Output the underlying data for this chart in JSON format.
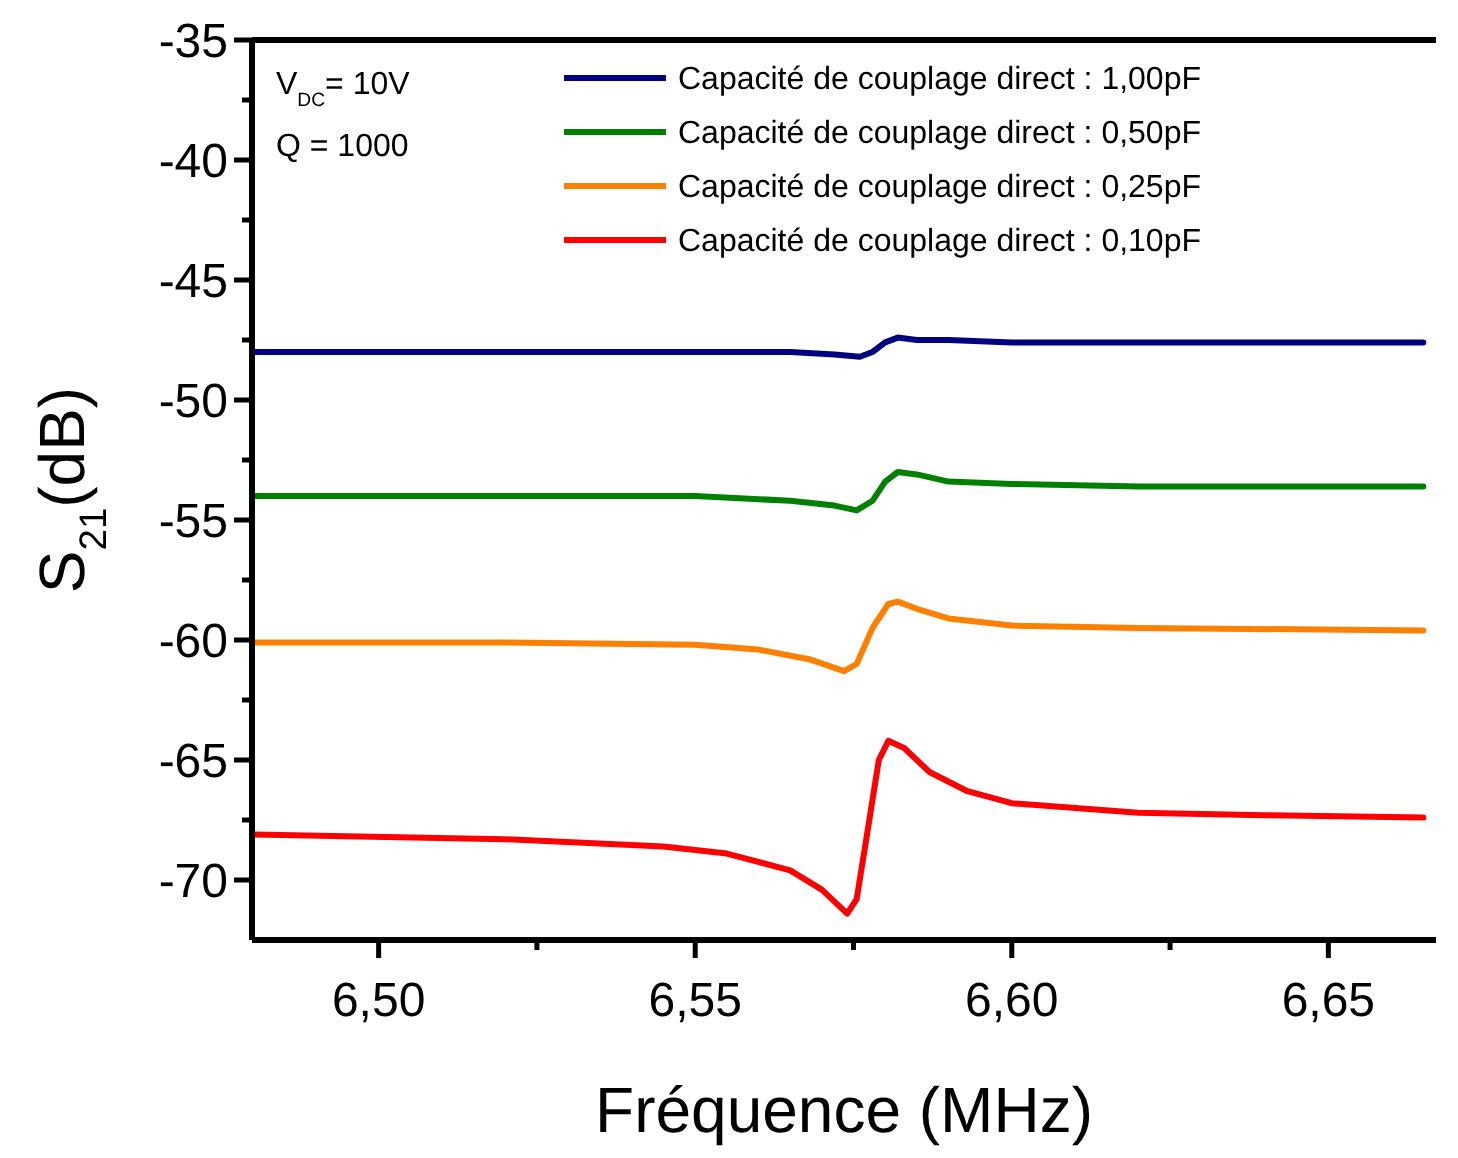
{
  "chart_data": {
    "type": "line",
    "xlabel": "Fréquence (MHz)",
    "ylabel": "S$_{21}$(dB)",
    "annotations": [
      "V$_{DC}$= 10V",
      "Q = 1000"
    ],
    "xlim": [
      6.48,
      6.667
    ],
    "ylim": [
      -72.5,
      -35
    ],
    "xticks": [
      {
        "value": 6.5,
        "label": "6,50"
      },
      {
        "value": 6.525,
        "label": null
      },
      {
        "value": 6.55,
        "label": "6,55"
      },
      {
        "value": 6.575,
        "label": null
      },
      {
        "value": 6.6,
        "label": "6,60"
      },
      {
        "value": 6.625,
        "label": null
      },
      {
        "value": 6.65,
        "label": "6,65"
      }
    ],
    "yticks": [
      -35,
      {
        "value": -37.5,
        "label": null
      },
      -40,
      {
        "value": -42.5,
        "label": null
      },
      -45,
      {
        "value": -47.5,
        "label": null
      },
      -50,
      {
        "value": -52.5,
        "label": null
      },
      -55,
      {
        "value": -57.5,
        "label": null
      },
      -60,
      {
        "value": -62.5,
        "label": null
      },
      -65,
      {
        "value": -67.5,
        "label": null
      },
      -70
    ],
    "grid": false,
    "legend": "top right",
    "line_style": "solid",
    "marker": "none",
    "series": [
      {
        "name": "Capacité de couplage direct : 1,00pF",
        "color": "#000080",
        "x": [
          6.48,
          6.52,
          6.55,
          6.565,
          6.572,
          6.576,
          6.578,
          6.58,
          6.582,
          6.585,
          6.59,
          6.6,
          6.63,
          6.665
        ],
        "values": [
          -48.0,
          -48.0,
          -48.0,
          -48.0,
          -48.1,
          -48.2,
          -48.0,
          -47.6,
          -47.4,
          -47.5,
          -47.5,
          -47.6,
          -47.6,
          -47.6
        ]
      },
      {
        "name": "Capacité de couplage direct : 0,50pF",
        "color": "#008000",
        "x": [
          6.48,
          6.52,
          6.55,
          6.565,
          6.572,
          6.5755,
          6.578,
          6.58,
          6.582,
          6.585,
          6.59,
          6.6,
          6.62,
          6.665
        ],
        "values": [
          -54.0,
          -54.0,
          -54.0,
          -54.2,
          -54.4,
          -54.6,
          -54.2,
          -53.4,
          -53.0,
          -53.1,
          -53.4,
          -53.5,
          -53.6,
          -53.6
        ]
      },
      {
        "name": "Capacité de couplage direct : 0,25pF",
        "color": "#ff8000",
        "x": [
          6.48,
          6.52,
          6.55,
          6.56,
          6.568,
          6.5735,
          6.5755,
          6.578,
          6.5805,
          6.582,
          6.585,
          6.59,
          6.6,
          6.62,
          6.665
        ],
        "values": [
          -60.1,
          -60.1,
          -60.2,
          -60.4,
          -60.8,
          -61.3,
          -61.0,
          -59.5,
          -58.5,
          -58.4,
          -58.7,
          -59.1,
          -59.4,
          -59.5,
          -59.6
        ]
      },
      {
        "name": "Capacité de couplage direct : 0,10pF",
        "color": "#ff0000",
        "x": [
          6.48,
          6.52,
          6.545,
          6.555,
          6.565,
          6.57,
          6.574,
          6.5755,
          6.5775,
          6.579,
          6.5805,
          6.583,
          6.587,
          6.593,
          6.6,
          6.62,
          6.64,
          6.665
        ],
        "values": [
          -68.1,
          -68.3,
          -68.6,
          -68.9,
          -69.6,
          -70.4,
          -71.4,
          -70.8,
          -67.5,
          -65.0,
          -64.2,
          -64.5,
          -65.5,
          -66.3,
          -66.8,
          -67.2,
          -67.3,
          -67.4
        ]
      }
    ]
  }
}
